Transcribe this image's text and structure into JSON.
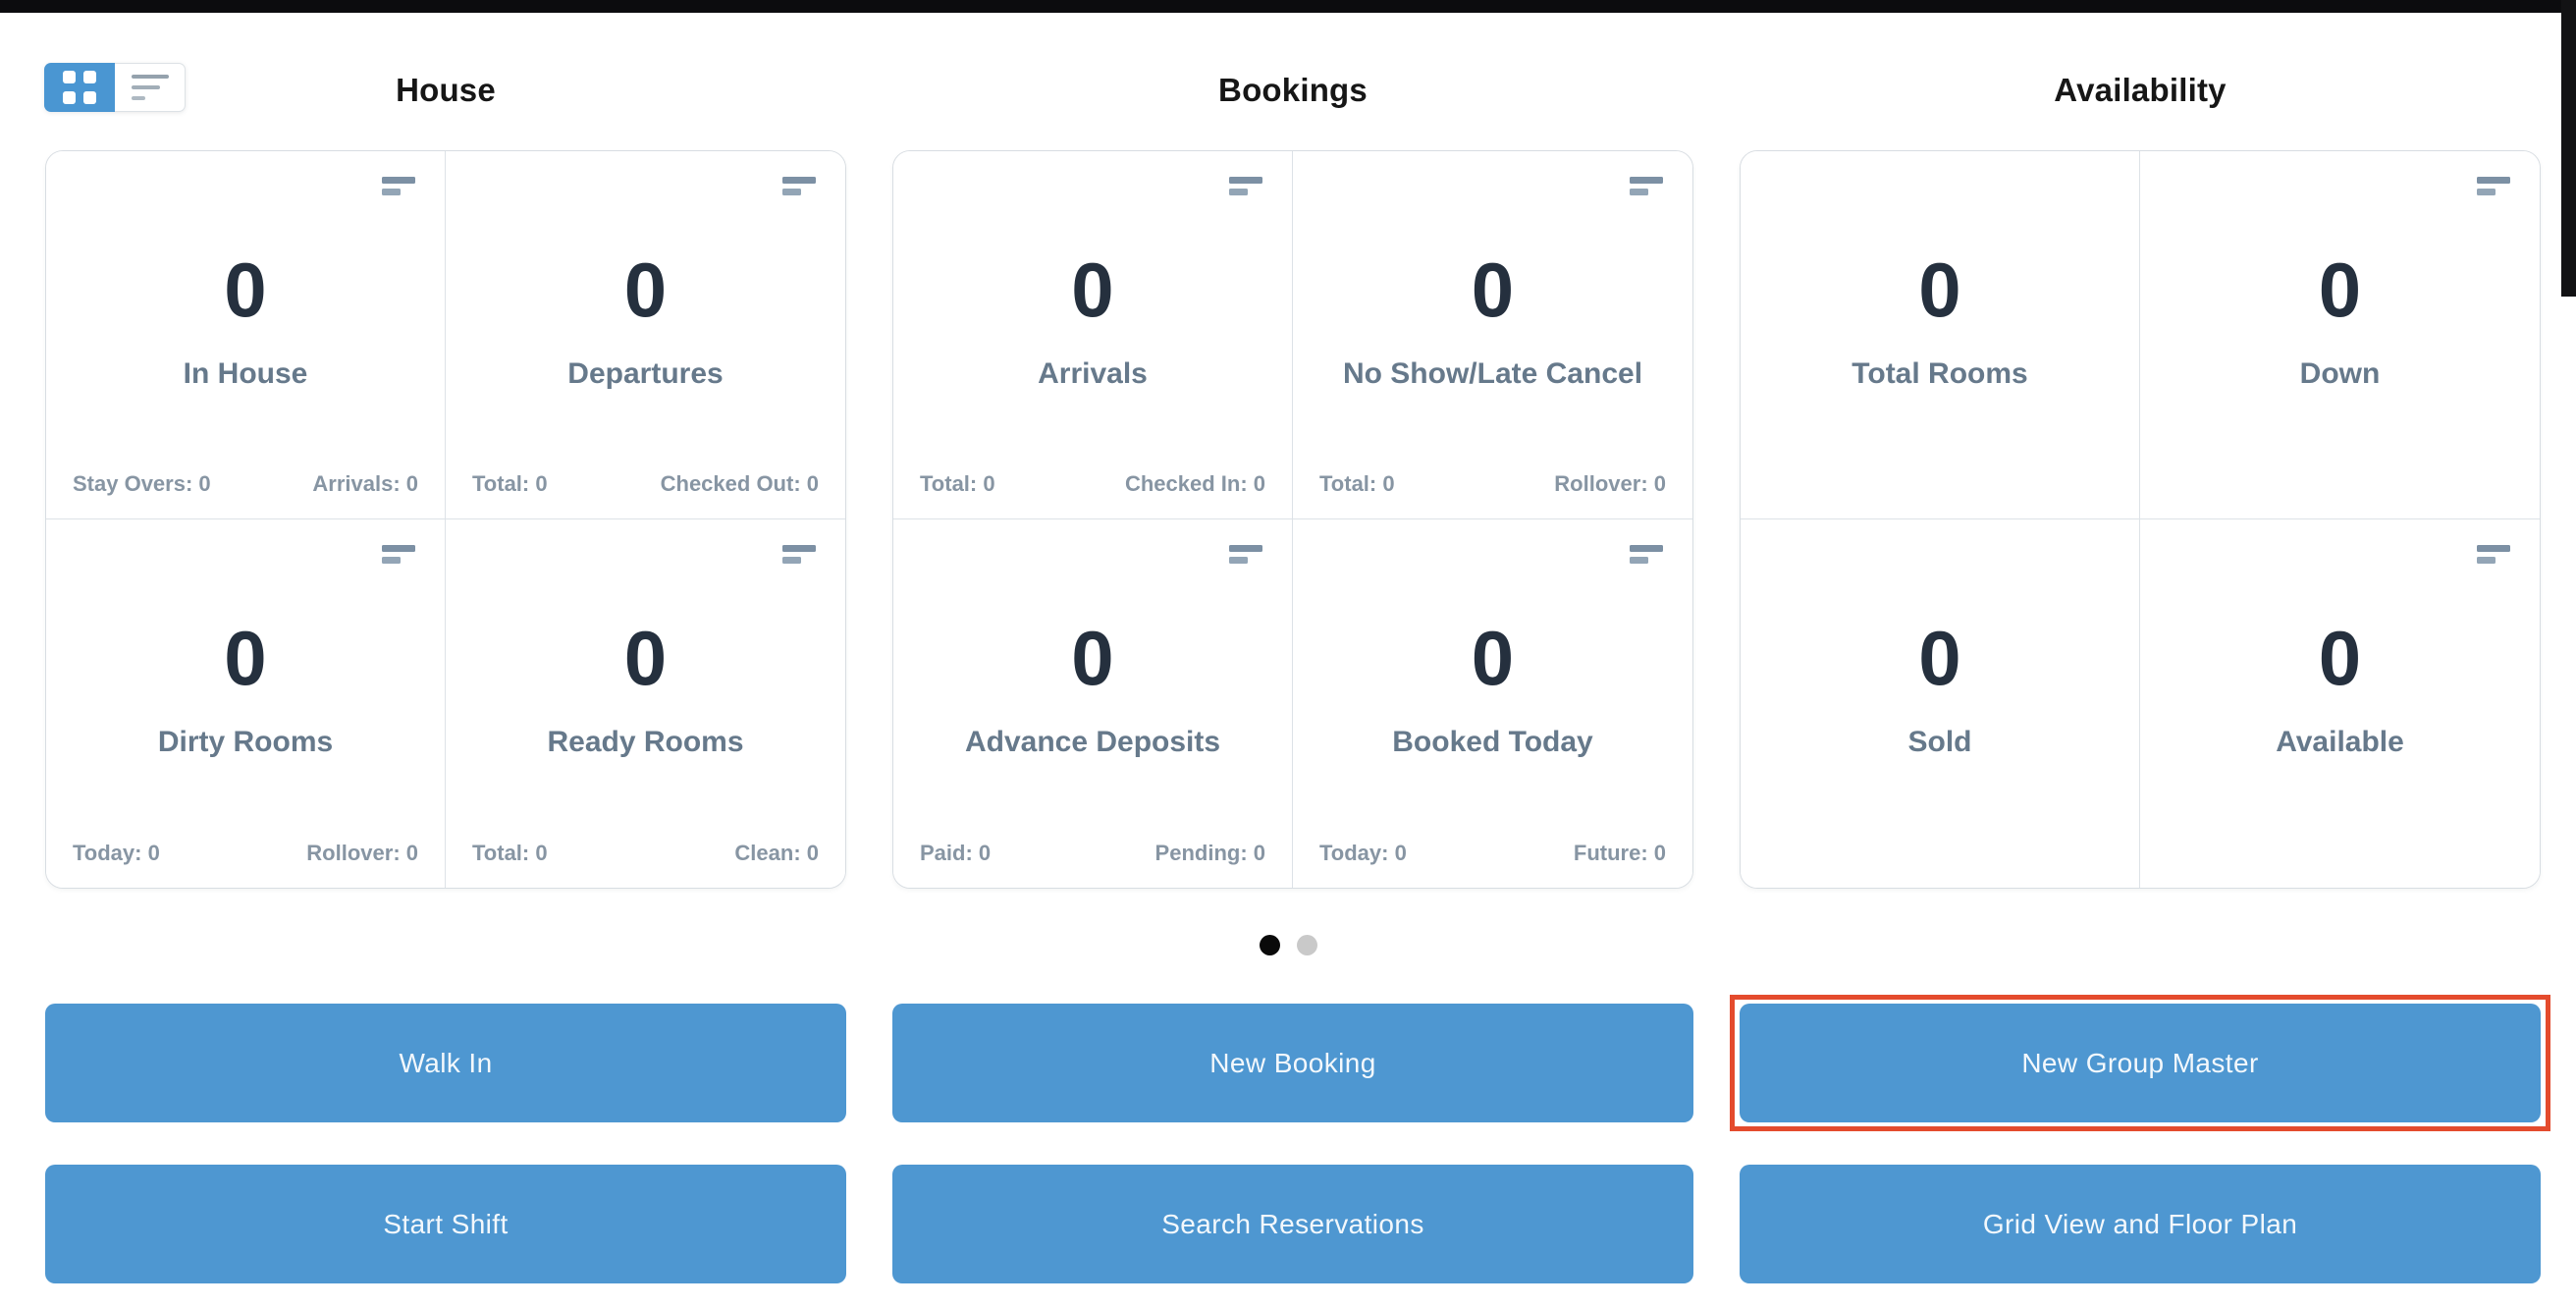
{
  "accent_color": "#4e97d1",
  "highlight_color": "#e44b2d",
  "view_toggle": {
    "active": "grid",
    "grid_icon": "grid-view-icon",
    "list_icon": "list-view-icon"
  },
  "sections": [
    {
      "title": "House",
      "cards": [
        {
          "value": "0",
          "label": "In House",
          "stat_left": "Stay Overs: 0",
          "stat_right": "Arrivals: 0",
          "menu_icon": "card-options-icon"
        },
        {
          "value": "0",
          "label": "Departures",
          "stat_left": "Total: 0",
          "stat_right": "Checked Out: 0",
          "menu_icon": "card-options-icon"
        },
        {
          "value": "0",
          "label": "Dirty Rooms",
          "stat_left": "Today: 0",
          "stat_right": "Rollover: 0",
          "menu_icon": "card-options-icon"
        },
        {
          "value": "0",
          "label": "Ready Rooms",
          "stat_left": "Total: 0",
          "stat_right": "Clean: 0",
          "menu_icon": "card-options-icon"
        }
      ]
    },
    {
      "title": "Bookings",
      "cards": [
        {
          "value": "0",
          "label": "Arrivals",
          "stat_left": "Total: 0",
          "stat_right": "Checked In: 0",
          "menu_icon": "card-options-icon"
        },
        {
          "value": "0",
          "label": "No Show/Late Cancel",
          "stat_left": "Total: 0",
          "stat_right": "Rollover: 0",
          "menu_icon": "card-options-icon"
        },
        {
          "value": "0",
          "label": "Advance Deposits",
          "stat_left": "Paid: 0",
          "stat_right": "Pending: 0",
          "menu_icon": "card-options-icon"
        },
        {
          "value": "0",
          "label": "Booked Today",
          "stat_left": "Today: 0",
          "stat_right": "Future: 0",
          "menu_icon": "card-options-icon"
        }
      ]
    },
    {
      "title": "Availability",
      "cards": [
        {
          "value": "0",
          "label": "Total Rooms"
        },
        {
          "value": "0",
          "label": "Down",
          "menu_icon": "card-options-icon"
        },
        {
          "value": "0",
          "label": "Sold"
        },
        {
          "value": "0",
          "label": "Available",
          "menu_icon": "card-options-icon"
        }
      ]
    }
  ],
  "pagination": {
    "dots": 2,
    "active_dot": 1
  },
  "buttons": {
    "walk_in": "Walk In",
    "new_booking": "New Booking",
    "new_group_master": "New Group Master",
    "start_shift": "Start Shift",
    "search_reservations": "Search Reservations",
    "grid_view_floor_plan": "Grid View and Floor Plan",
    "highlighted": "New Group Master"
  }
}
